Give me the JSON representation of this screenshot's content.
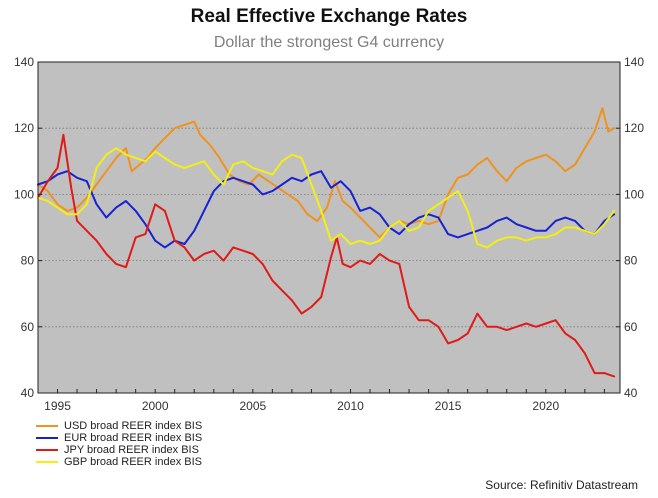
{
  "chart_data": {
    "type": "line",
    "title": "Real Effective Exchange Rates",
    "subtitle": "Dollar the strongest G4 currency",
    "xlabel": "",
    "ylabel": "",
    "xlim": [
      1994,
      2023.8
    ],
    "ylim": [
      40,
      140
    ],
    "x_ticks": [
      "1995",
      "2000",
      "2005",
      "2010",
      "2015",
      "2020"
    ],
    "x_tick_values": [
      1995,
      2000,
      2005,
      2010,
      2015,
      2020
    ],
    "y_ticks": [
      "40",
      "60",
      "80",
      "100",
      "120",
      "140"
    ],
    "y_tick_values": [
      40,
      60,
      80,
      100,
      120,
      140
    ],
    "grid": "horizontal dotted",
    "legend_position": "bottom-left",
    "source": "Source: Refinitiv Datastream",
    "series": [
      {
        "name": "USD broad REER index BIS",
        "color": "#f0921e",
        "points": [
          [
            1994.0,
            103
          ],
          [
            1994.5,
            101
          ],
          [
            1995.0,
            97
          ],
          [
            1995.5,
            95
          ],
          [
            1996.0,
            96
          ],
          [
            1996.5,
            99
          ],
          [
            1997.0,
            103
          ],
          [
            1997.5,
            107
          ],
          [
            1998.0,
            111
          ],
          [
            1998.5,
            114
          ],
          [
            1998.8,
            107
          ],
          [
            1999.2,
            109
          ],
          [
            1999.6,
            111
          ],
          [
            2000.0,
            114
          ],
          [
            2000.5,
            117
          ],
          [
            2001.0,
            120
          ],
          [
            2001.5,
            121
          ],
          [
            2002.0,
            122
          ],
          [
            2002.3,
            118
          ],
          [
            2002.8,
            115
          ],
          [
            2003.3,
            111
          ],
          [
            2003.8,
            106
          ],
          [
            2004.3,
            104
          ],
          [
            2004.8,
            103
          ],
          [
            2005.3,
            106
          ],
          [
            2005.8,
            104
          ],
          [
            2006.3,
            102
          ],
          [
            2006.8,
            100
          ],
          [
            2007.3,
            98
          ],
          [
            2007.8,
            94
          ],
          [
            2008.3,
            92
          ],
          [
            2008.8,
            96
          ],
          [
            2009.2,
            104
          ],
          [
            2009.6,
            98
          ],
          [
            2010.0,
            96
          ],
          [
            2010.5,
            93
          ],
          [
            2011.0,
            90
          ],
          [
            2011.5,
            87
          ],
          [
            2012.0,
            90
          ],
          [
            2012.5,
            92
          ],
          [
            2013.0,
            91
          ],
          [
            2013.5,
            92
          ],
          [
            2014.0,
            91
          ],
          [
            2014.5,
            92
          ],
          [
            2015.0,
            100
          ],
          [
            2015.5,
            105
          ],
          [
            2016.0,
            106
          ],
          [
            2016.5,
            109
          ],
          [
            2017.0,
            111
          ],
          [
            2017.5,
            107
          ],
          [
            2018.0,
            104
          ],
          [
            2018.5,
            108
          ],
          [
            2019.0,
            110
          ],
          [
            2019.5,
            111
          ],
          [
            2020.0,
            112
          ],
          [
            2020.5,
            110
          ],
          [
            2021.0,
            107
          ],
          [
            2021.5,
            109
          ],
          [
            2022.0,
            114
          ],
          [
            2022.5,
            119
          ],
          [
            2022.9,
            126
          ],
          [
            2023.2,
            119
          ],
          [
            2023.5,
            120
          ]
        ]
      },
      {
        "name": "EUR broad REER index BIS",
        "color": "#1722d0",
        "points": [
          [
            1994.0,
            103
          ],
          [
            1994.5,
            104
          ],
          [
            1995.0,
            106
          ],
          [
            1995.5,
            107
          ],
          [
            1996.0,
            105
          ],
          [
            1996.5,
            104
          ],
          [
            1997.0,
            97
          ],
          [
            1997.5,
            93
          ],
          [
            1998.0,
            96
          ],
          [
            1998.5,
            98
          ],
          [
            1999.0,
            95
          ],
          [
            1999.5,
            91
          ],
          [
            2000.0,
            86
          ],
          [
            2000.5,
            84
          ],
          [
            2001.0,
            86
          ],
          [
            2001.5,
            85
          ],
          [
            2002.0,
            89
          ],
          [
            2002.5,
            95
          ],
          [
            2003.0,
            101
          ],
          [
            2003.5,
            104
          ],
          [
            2004.0,
            105
          ],
          [
            2004.5,
            104
          ],
          [
            2005.0,
            103
          ],
          [
            2005.5,
            100
          ],
          [
            2006.0,
            101
          ],
          [
            2006.5,
            103
          ],
          [
            2007.0,
            105
          ],
          [
            2007.5,
            104
          ],
          [
            2008.0,
            106
          ],
          [
            2008.5,
            107
          ],
          [
            2009.0,
            102
          ],
          [
            2009.5,
            104
          ],
          [
            2010.0,
            101
          ],
          [
            2010.5,
            95
          ],
          [
            2011.0,
            96
          ],
          [
            2011.5,
            94
          ],
          [
            2012.0,
            90
          ],
          [
            2012.5,
            88
          ],
          [
            2013.0,
            91
          ],
          [
            2013.5,
            93
          ],
          [
            2014.0,
            94
          ],
          [
            2014.5,
            93
          ],
          [
            2015.0,
            88
          ],
          [
            2015.5,
            87
          ],
          [
            2016.0,
            88
          ],
          [
            2016.5,
            89
          ],
          [
            2017.0,
            90
          ],
          [
            2017.5,
            92
          ],
          [
            2018.0,
            93
          ],
          [
            2018.5,
            91
          ],
          [
            2019.0,
            90
          ],
          [
            2019.5,
            89
          ],
          [
            2020.0,
            89
          ],
          [
            2020.5,
            92
          ],
          [
            2021.0,
            93
          ],
          [
            2021.5,
            92
          ],
          [
            2022.0,
            89
          ],
          [
            2022.5,
            88
          ],
          [
            2023.0,
            92
          ],
          [
            2023.5,
            94
          ]
        ]
      },
      {
        "name": "JPY broad REER index BIS",
        "color": "#e01b17",
        "points": [
          [
            1994.0,
            99
          ],
          [
            1994.5,
            104
          ],
          [
            1995.0,
            108
          ],
          [
            1995.3,
            118
          ],
          [
            1995.7,
            102
          ],
          [
            1996.0,
            92
          ],
          [
            1996.5,
            89
          ],
          [
            1997.0,
            86
          ],
          [
            1997.5,
            82
          ],
          [
            1998.0,
            79
          ],
          [
            1998.5,
            78
          ],
          [
            1999.0,
            87
          ],
          [
            1999.5,
            88
          ],
          [
            2000.0,
            97
          ],
          [
            2000.5,
            95
          ],
          [
            2001.0,
            86
          ],
          [
            2001.5,
            84
          ],
          [
            2002.0,
            80
          ],
          [
            2002.5,
            82
          ],
          [
            2003.0,
            83
          ],
          [
            2003.5,
            80
          ],
          [
            2004.0,
            84
          ],
          [
            2004.5,
            83
          ],
          [
            2005.0,
            82
          ],
          [
            2005.5,
            79
          ],
          [
            2006.0,
            74
          ],
          [
            2006.5,
            71
          ],
          [
            2007.0,
            68
          ],
          [
            2007.5,
            64
          ],
          [
            2008.0,
            66
          ],
          [
            2008.5,
            69
          ],
          [
            2009.0,
            81
          ],
          [
            2009.3,
            87
          ],
          [
            2009.6,
            79
          ],
          [
            2010.0,
            78
          ],
          [
            2010.5,
            80
          ],
          [
            2011.0,
            79
          ],
          [
            2011.5,
            82
          ],
          [
            2012.0,
            80
          ],
          [
            2012.5,
            79
          ],
          [
            2013.0,
            66
          ],
          [
            2013.5,
            62
          ],
          [
            2014.0,
            62
          ],
          [
            2014.5,
            60
          ],
          [
            2015.0,
            55
          ],
          [
            2015.5,
            56
          ],
          [
            2016.0,
            58
          ],
          [
            2016.5,
            64
          ],
          [
            2017.0,
            60
          ],
          [
            2017.5,
            60
          ],
          [
            2018.0,
            59
          ],
          [
            2018.5,
            60
          ],
          [
            2019.0,
            61
          ],
          [
            2019.5,
            60
          ],
          [
            2020.0,
            61
          ],
          [
            2020.5,
            62
          ],
          [
            2021.0,
            58
          ],
          [
            2021.5,
            56
          ],
          [
            2022.0,
            52
          ],
          [
            2022.5,
            46
          ],
          [
            2023.0,
            46
          ],
          [
            2023.5,
            45
          ]
        ]
      },
      {
        "name": "GBP broad REER index BIS",
        "color": "#f4ef12",
        "points": [
          [
            1994.0,
            99
          ],
          [
            1994.5,
            98
          ],
          [
            1995.0,
            96
          ],
          [
            1995.5,
            94
          ],
          [
            1996.0,
            94
          ],
          [
            1996.5,
            97
          ],
          [
            1997.0,
            108
          ],
          [
            1997.5,
            112
          ],
          [
            1998.0,
            114
          ],
          [
            1998.5,
            112
          ],
          [
            1999.0,
            111
          ],
          [
            1999.5,
            110
          ],
          [
            2000.0,
            113
          ],
          [
            2000.5,
            111
          ],
          [
            2001.0,
            109
          ],
          [
            2001.5,
            108
          ],
          [
            2002.0,
            109
          ],
          [
            2002.5,
            110
          ],
          [
            2003.0,
            106
          ],
          [
            2003.5,
            103
          ],
          [
            2004.0,
            109
          ],
          [
            2004.5,
            110
          ],
          [
            2005.0,
            108
          ],
          [
            2005.5,
            107
          ],
          [
            2006.0,
            106
          ],
          [
            2006.5,
            110
          ],
          [
            2007.0,
            112
          ],
          [
            2007.5,
            111
          ],
          [
            2008.0,
            103
          ],
          [
            2008.5,
            95
          ],
          [
            2009.0,
            86
          ],
          [
            2009.5,
            88
          ],
          [
            2010.0,
            85
          ],
          [
            2010.5,
            86
          ],
          [
            2011.0,
            85
          ],
          [
            2011.5,
            86
          ],
          [
            2012.0,
            90
          ],
          [
            2012.5,
            92
          ],
          [
            2013.0,
            89
          ],
          [
            2013.5,
            90
          ],
          [
            2014.0,
            95
          ],
          [
            2014.5,
            97
          ],
          [
            2015.0,
            99
          ],
          [
            2015.5,
            101
          ],
          [
            2016.0,
            95
          ],
          [
            2016.5,
            85
          ],
          [
            2017.0,
            84
          ],
          [
            2017.5,
            86
          ],
          [
            2018.0,
            87
          ],
          [
            2018.5,
            87
          ],
          [
            2019.0,
            86
          ],
          [
            2019.5,
            87
          ],
          [
            2020.0,
            87
          ],
          [
            2020.5,
            88
          ],
          [
            2021.0,
            90
          ],
          [
            2021.5,
            90
          ],
          [
            2022.0,
            89
          ],
          [
            2022.5,
            88
          ],
          [
            2023.0,
            91
          ],
          [
            2023.5,
            95
          ]
        ]
      }
    ]
  }
}
